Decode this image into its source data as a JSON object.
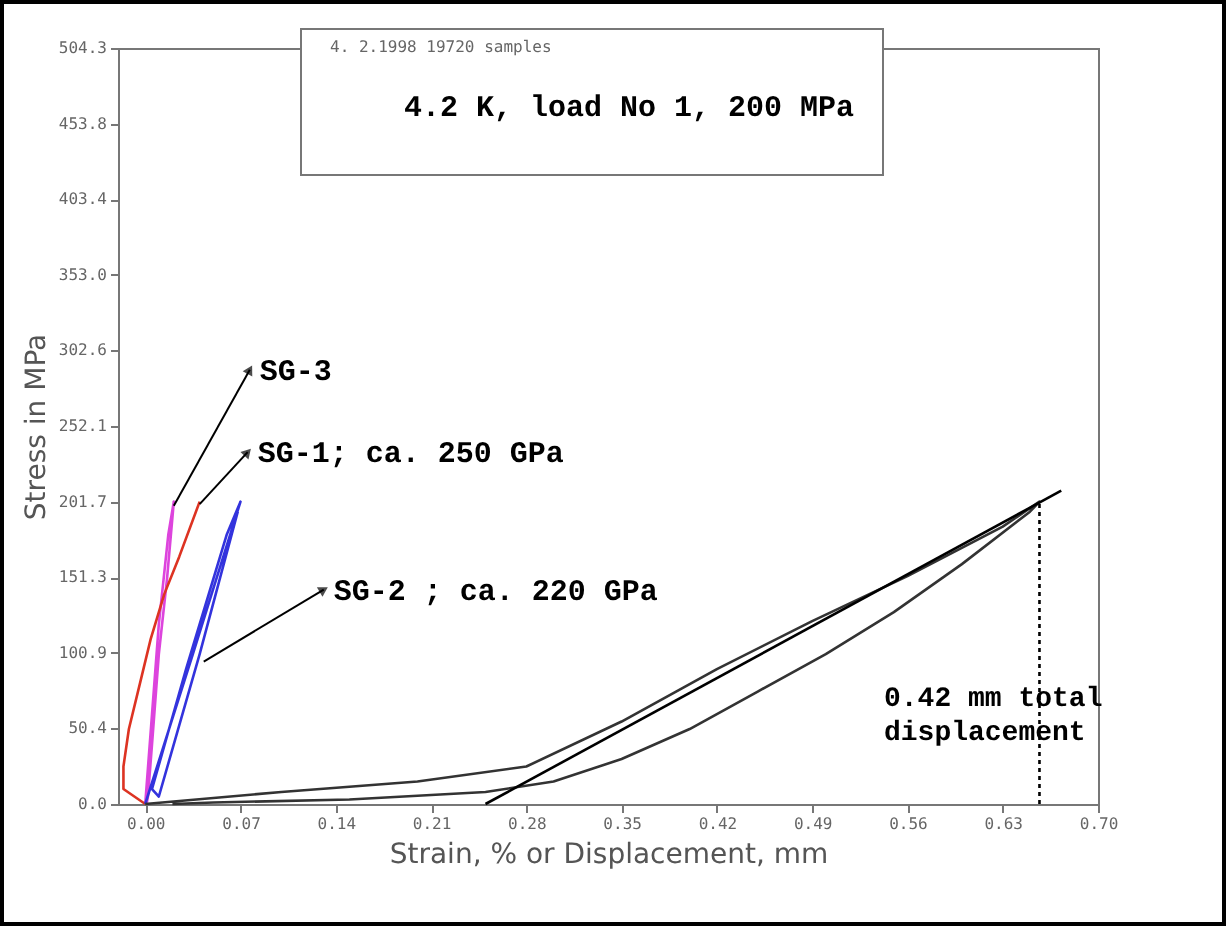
{
  "chart_data": {
    "type": "line",
    "title": "4.2 K, load No 1, 200 MPa",
    "subtitle": "4. 2.1998   19720 samples",
    "xlabel": "Strain, % or Displacement,  mm",
    "ylabel": "Stress in MPa",
    "xlim": [
      -0.02,
      0.7
    ],
    "xticks": [
      {
        "value": 0,
        "label": "0.00"
      },
      0.07,
      0.14,
      0.21,
      0.28,
      0.35,
      0.42,
      0.49,
      0.56,
      0.63,
      {
        "value": 0.7,
        "label": "0.70"
      }
    ],
    "ylim": [
      0,
      504.3
    ],
    "yticks": [
      {
        "value": 0,
        "label": "0.0"
      },
      50.4,
      {
        "value": 100.9,
        "label": "100.9"
      },
      151.3,
      {
        "value": 201.7,
        "label": "201.7"
      },
      252.1,
      {
        "value": 302.6,
        "label": "302.6"
      },
      {
        "value": 353.0,
        "label": "353.0"
      },
      {
        "value": 403.4,
        "label": "403.4"
      },
      453.8,
      {
        "value": 504.3,
        "label": "504.3"
      }
    ],
    "grid": false,
    "series": [
      {
        "color": "#dd44dd",
        "x": [
          0,
          0.005,
          0.01,
          0.017,
          0.021,
          0.016,
          0.01,
          0.005,
          0.002,
          0.001
        ],
        "values": [
          0,
          60,
          120,
          180,
          201.7,
          150,
          100,
          40,
          5,
          0
        ]
      },
      {
        "color": "#dd3322",
        "x": [
          0,
          -0.016,
          -0.016,
          -0.012,
          -0.004,
          0.004,
          0.014,
          0.025,
          0.04
        ],
        "values": [
          0,
          10,
          25,
          50,
          80,
          110,
          140,
          165,
          201.7
        ]
      },
      {
        "color": "#3333dd",
        "x": [
          0,
          0.035,
          0.07,
          0.06,
          0.03,
          0.005,
          0.01,
          0.04,
          0.068
        ],
        "values": [
          0,
          100,
          201.7,
          180,
          90,
          10,
          5,
          100,
          195
        ]
      },
      {
        "color": "#333333",
        "x": [
          0,
          0.1,
          0.2,
          0.28,
          0.35,
          0.42,
          0.49,
          0.56,
          0.63,
          0.657,
          0.65,
          0.6,
          0.55,
          0.5,
          0.45,
          0.4,
          0.35,
          0.3,
          0.25,
          0.15,
          0.05,
          0.02
        ],
        "values": [
          0,
          8,
          15,
          25,
          55,
          90,
          122,
          152,
          185,
          201.7,
          195,
          160,
          128,
          100,
          75,
          50,
          30,
          15,
          8,
          3,
          1,
          0
        ]
      },
      {
        "type": "line",
        "color": "#000000",
        "x": [
          0.25,
          0.673
        ],
        "values": [
          0,
          209
        ]
      },
      {
        "type": "line",
        "color": "#000000",
        "line_style": "dotted",
        "x": [
          0.657,
          0.657
        ],
        "values": [
          0,
          201.7
        ]
      }
    ],
    "annotations": [
      {
        "text": "SG-3",
        "x": 0.021,
        "y": 199
      },
      {
        "text": "SG-1; ca. 250 GPa",
        "x": 0.04,
        "y": 200
      },
      {
        "text": "SG-2 ; ca. 220 GPa",
        "x": 0.043,
        "y": 95
      },
      "0.42 mm total displacement"
    ]
  }
}
